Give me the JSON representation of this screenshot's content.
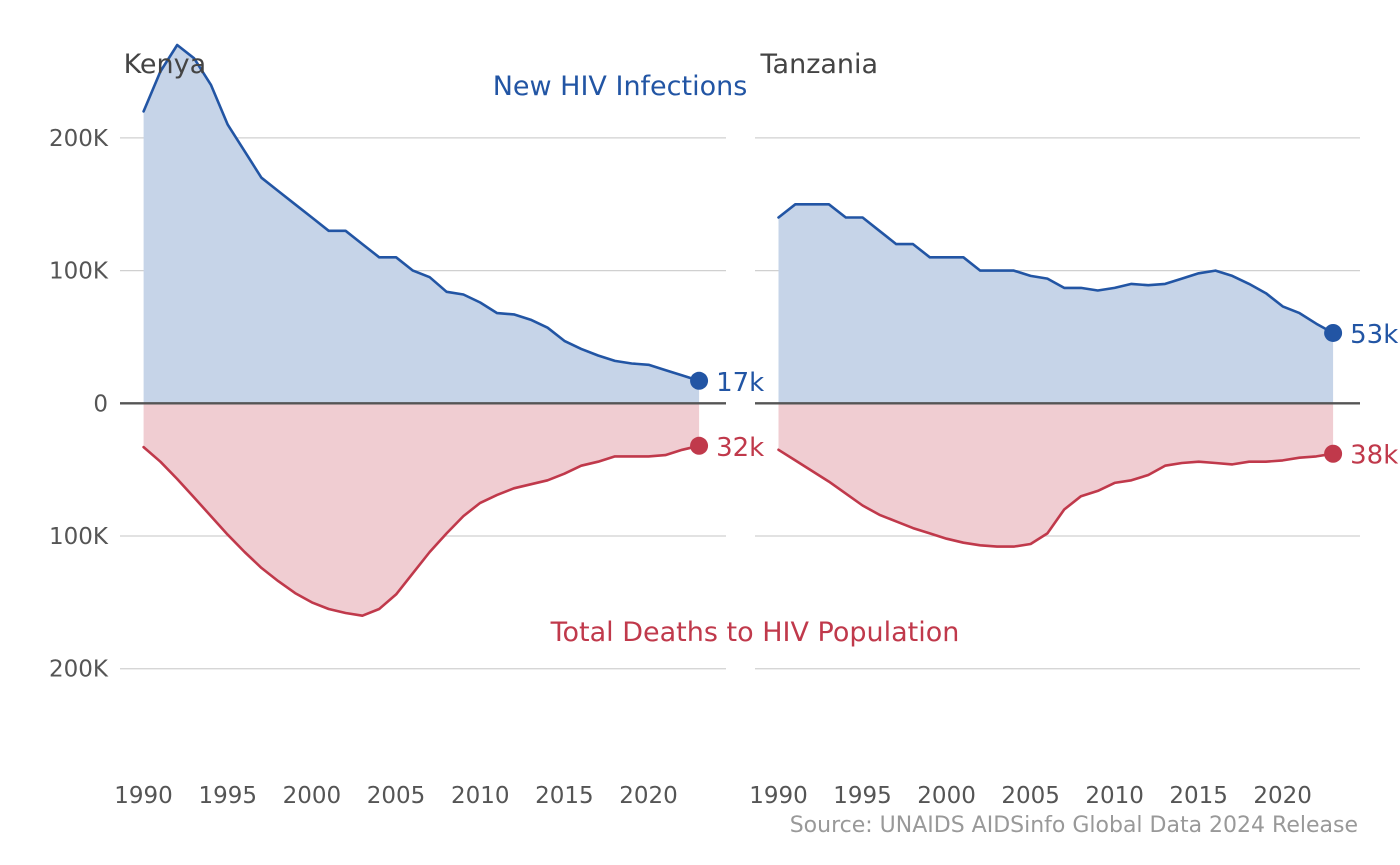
{
  "chart_data": {
    "type": "area",
    "colors": {
      "infections": "#2255a4",
      "infections_fill": "#c6d4e8",
      "deaths": "#c0394b",
      "deaths_fill": "#f0cdd2",
      "grid": "#d0d0d0",
      "zero_line": "#555555"
    },
    "annotations": {
      "infections": "New HIV Infections",
      "deaths": "Total Deaths to HIV Population"
    },
    "source": "Source: UNAIDS AIDSinfo Global Data 2024 Release",
    "y_ticks": [
      {
        "value": 200000,
        "label": "200K"
      },
      {
        "value": 100000,
        "label": "100K"
      },
      {
        "value": 0,
        "label": "0"
      },
      {
        "value": -100000,
        "label": "100K"
      },
      {
        "value": -200000,
        "label": "200K"
      }
    ],
    "x_ticks": [
      {
        "value": 1990,
        "label": "1990"
      },
      {
        "value": 1995,
        "label": "1995"
      },
      {
        "value": 2000,
        "label": "2000"
      },
      {
        "value": 2005,
        "label": "2005"
      },
      {
        "value": 2010,
        "label": "2010"
      },
      {
        "value": 2015,
        "label": "2015"
      },
      {
        "value": 2020,
        "label": "2020"
      }
    ],
    "xlim": [
      1988.6,
      2024.6
    ],
    "ylim": [
      -265000,
      270000
    ],
    "grid": true,
    "panels": [
      {
        "title": "Kenya",
        "years": [
          1990,
          1991,
          1992,
          1993,
          1994,
          1995,
          1996,
          1997,
          1998,
          1999,
          2000,
          2001,
          2002,
          2003,
          2004,
          2005,
          2006,
          2007,
          2008,
          2009,
          2010,
          2011,
          2012,
          2013,
          2014,
          2015,
          2016,
          2017,
          2018,
          2019,
          2020,
          2021,
          2022,
          2023
        ],
        "series": [
          {
            "name": "New HIV Infections",
            "values": [
              220000,
              250000,
              270000,
              260000,
              240000,
              210000,
              190000,
              170000,
              160000,
              150000,
              140000,
              130000,
              130000,
              120000,
              110000,
              110000,
              100000,
              95000,
              84000,
              82000,
              76000,
              68000,
              67000,
              63000,
              57000,
              47000,
              41000,
              36000,
              32000,
              30000,
              29000,
              25000,
              21000,
              17000
            ],
            "end_label": "17k"
          },
          {
            "name": "Total Deaths to HIV Population",
            "values": [
              -33000,
              -44000,
              -57000,
              -71000,
              -85000,
              -99000,
              -112000,
              -124000,
              -134000,
              -143000,
              -150000,
              -155000,
              -158000,
              -160000,
              -155000,
              -144000,
              -128000,
              -112000,
              -98000,
              -85000,
              -75000,
              -69000,
              -64000,
              -61000,
              -58000,
              -53000,
              -47000,
              -44000,
              -40000,
              -40000,
              -40000,
              -39000,
              -35000,
              -32000
            ],
            "end_label": "32k"
          }
        ]
      },
      {
        "title": "Tanzania",
        "years": [
          1990,
          1991,
          1992,
          1993,
          1994,
          1995,
          1996,
          1997,
          1998,
          1999,
          2000,
          2001,
          2002,
          2003,
          2004,
          2005,
          2006,
          2007,
          2008,
          2009,
          2010,
          2011,
          2012,
          2013,
          2014,
          2015,
          2016,
          2017,
          2018,
          2019,
          2020,
          2021,
          2022,
          2023
        ],
        "series": [
          {
            "name": "New HIV Infections",
            "values": [
              140000,
              150000,
              150000,
              150000,
              140000,
              140000,
              130000,
              120000,
              120000,
              110000,
              110000,
              110000,
              100000,
              100000,
              100000,
              96000,
              94000,
              87000,
              87000,
              85000,
              87000,
              90000,
              89000,
              90000,
              94000,
              98000,
              100000,
              96000,
              90000,
              83000,
              73000,
              68000,
              60000,
              53000
            ],
            "end_label": "53k"
          },
          {
            "name": "Total Deaths to HIV Population",
            "values": [
              -35000,
              -43000,
              -51000,
              -59000,
              -68000,
              -77000,
              -84000,
              -89000,
              -94000,
              -98000,
              -102000,
              -105000,
              -107000,
              -108000,
              -108000,
              -106000,
              -98000,
              -80000,
              -70000,
              -66000,
              -60000,
              -58000,
              -54000,
              -47000,
              -45000,
              -44000,
              -45000,
              -46000,
              -44000,
              -44000,
              -43000,
              -41000,
              -40000,
              -38000
            ],
            "end_label": "38k"
          }
        ]
      }
    ]
  }
}
